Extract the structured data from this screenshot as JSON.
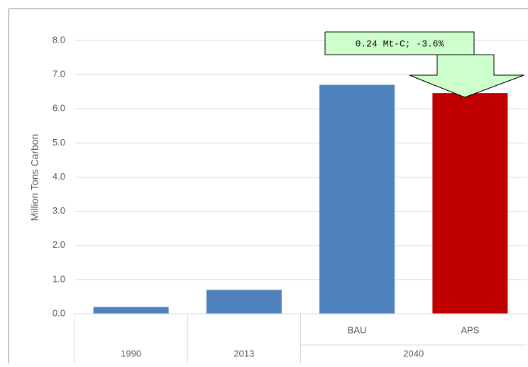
{
  "chart_data": {
    "type": "bar",
    "y_label": "Million Tons Carbon",
    "categories": [
      null,
      null,
      "BAU",
      "APS"
    ],
    "groups": [
      {
        "label": "1990",
        "categories": [
          0
        ]
      },
      {
        "label": "2013",
        "categories": [
          1
        ]
      },
      {
        "label": "2040",
        "categories": [
          2,
          3
        ]
      }
    ],
    "values": [
      0.2,
      0.7,
      6.7,
      6.46
    ],
    "colors": [
      "#4f81bd",
      "#4f81bd",
      "#4f81bd",
      "#c00000"
    ],
    "ylim": [
      0,
      8
    ],
    "yticks": [
      {
        "value": 0,
        "label": "0.0"
      },
      {
        "value": 1,
        "label": "1.0"
      },
      {
        "value": 2,
        "label": "2.0"
      },
      {
        "value": 3,
        "label": "3.0"
      },
      {
        "value": 4,
        "label": "4.0"
      },
      {
        "value": 5,
        "label": "5.0"
      },
      {
        "value": 6,
        "label": "6.0"
      },
      {
        "value": 7,
        "label": "7.0"
      },
      {
        "value": 8,
        "label": "8.0"
      }
    ],
    "grid": true,
    "annotation": "0.24 Mt-C; -3.6%"
  }
}
